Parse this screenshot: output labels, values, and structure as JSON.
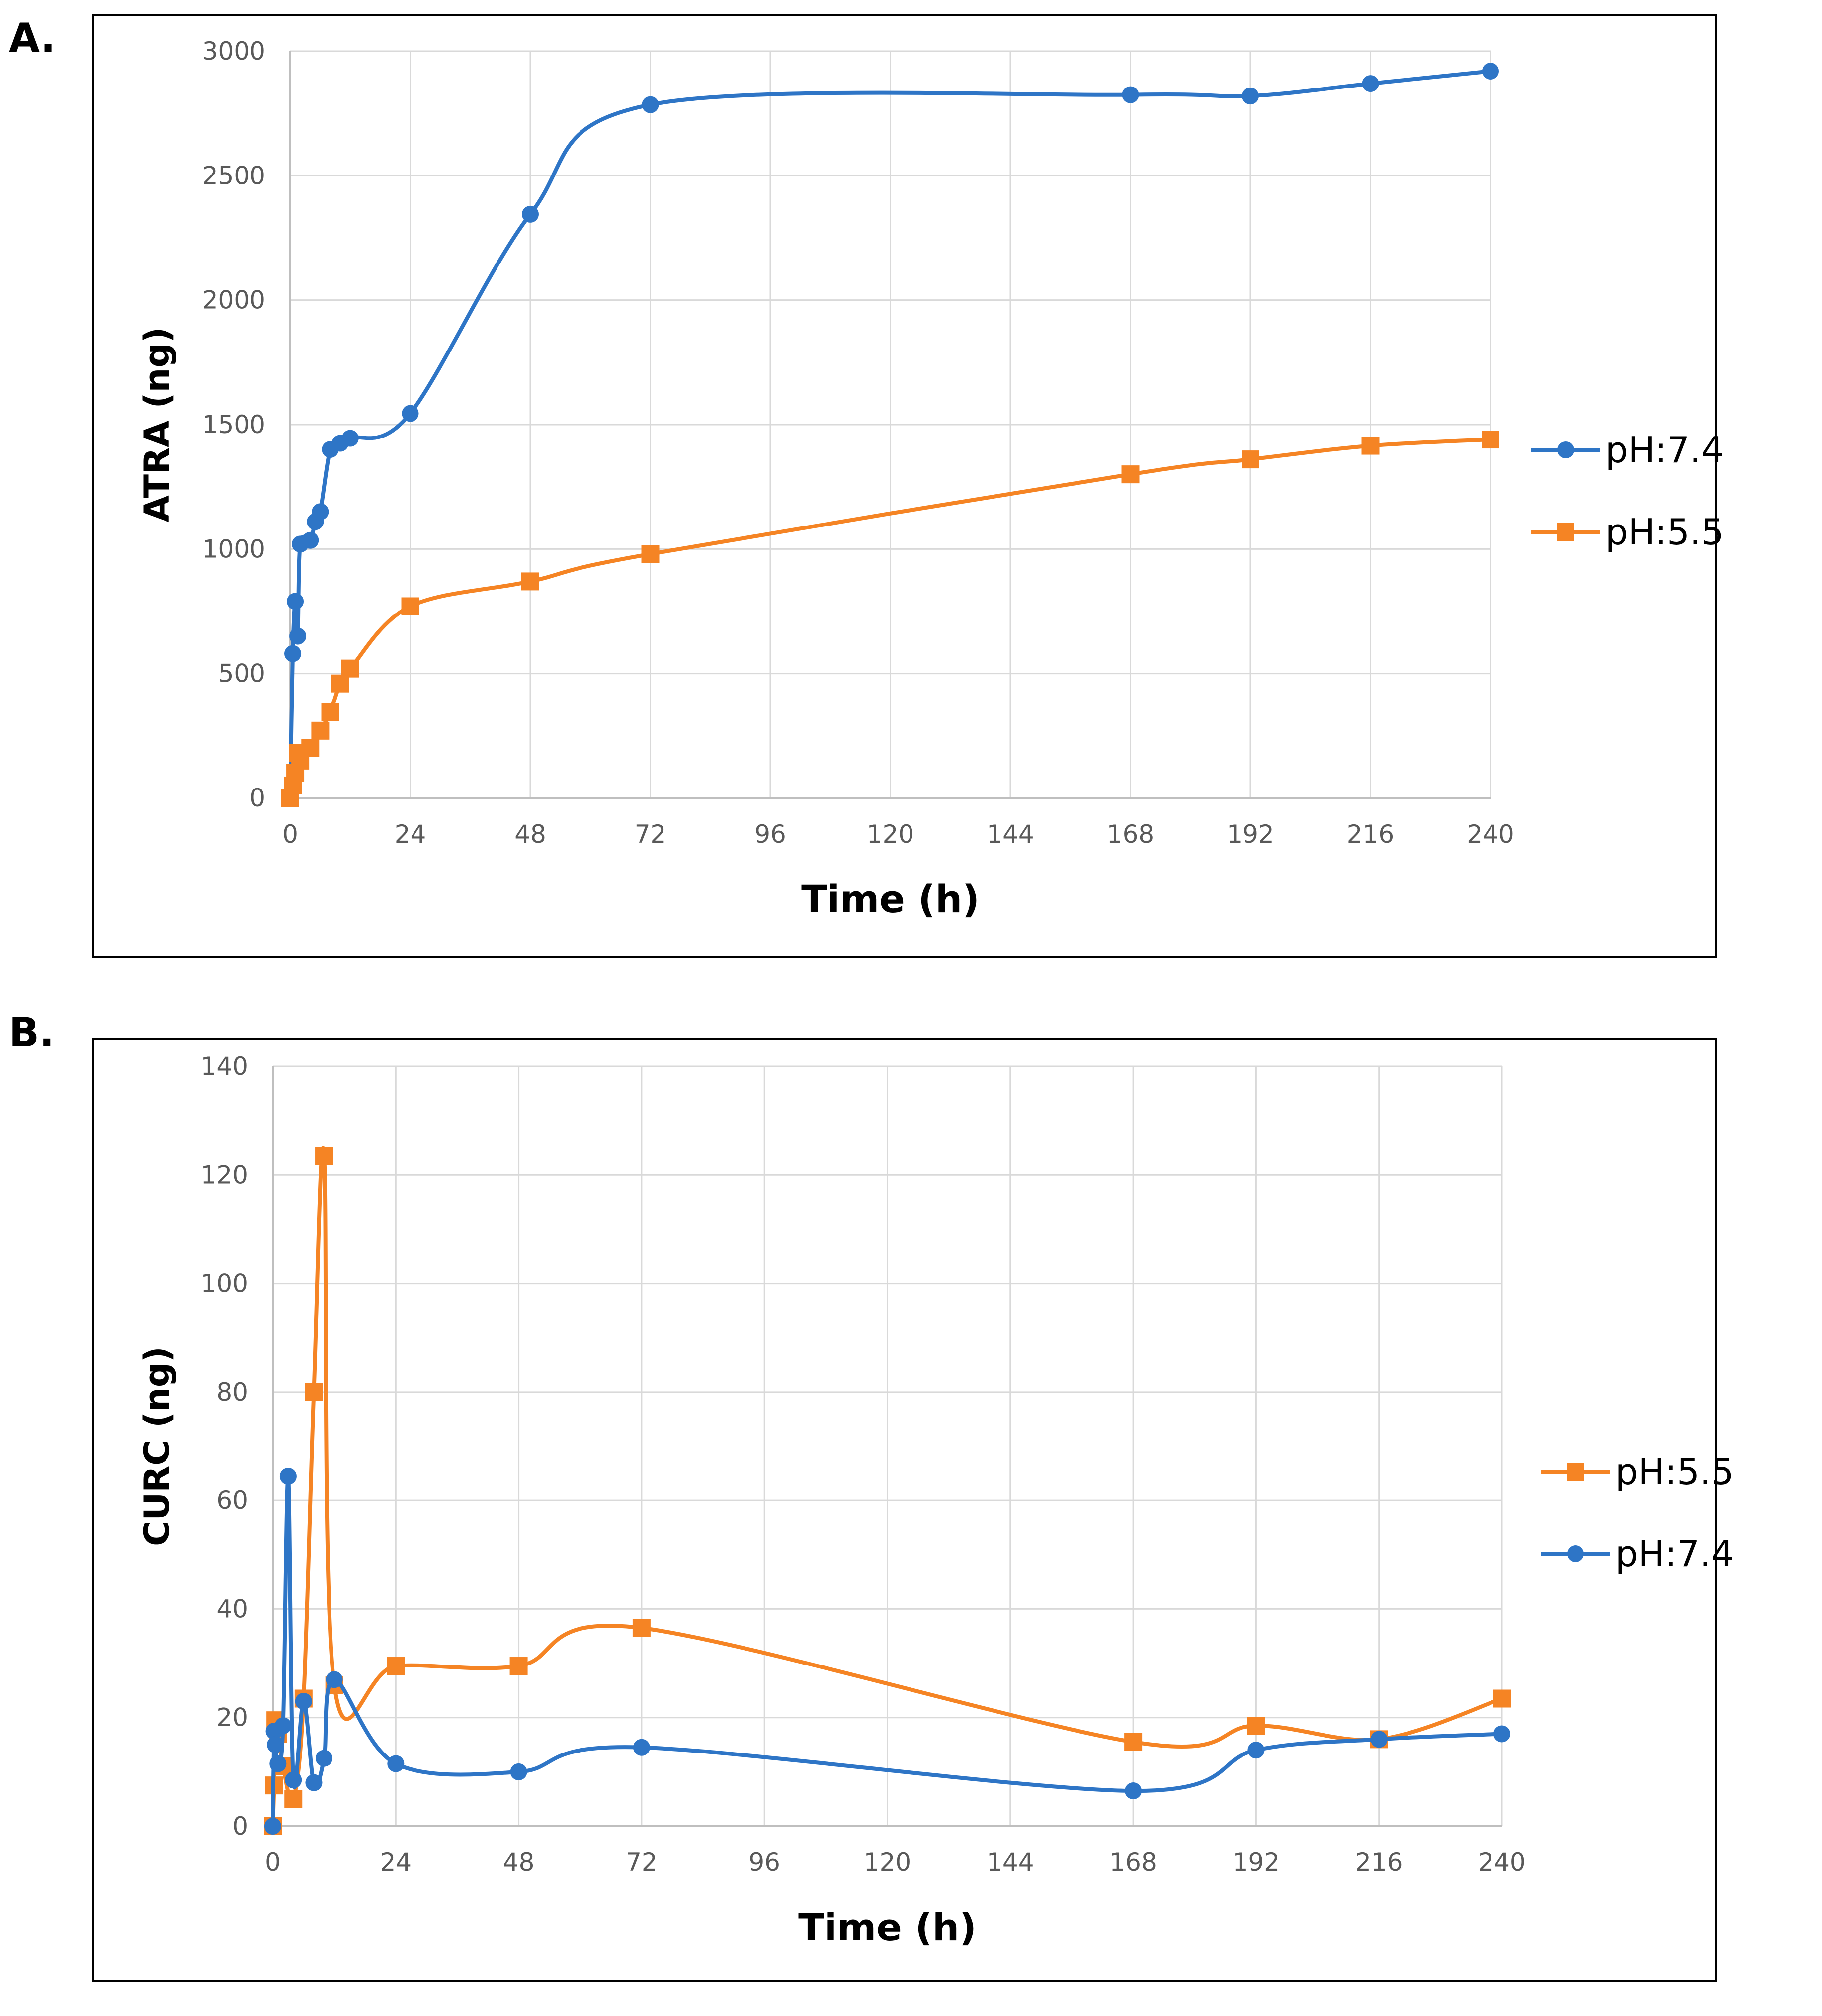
{
  "figure": {
    "panels": [
      {
        "letter": "A.",
        "xlabel": "Time (h)",
        "ylabel": "ATRA (ng)",
        "xticks": [
          0,
          24,
          48,
          72,
          96,
          120,
          144,
          168,
          192,
          216,
          240
        ],
        "yticks": [
          0,
          500,
          1000,
          1500,
          2000,
          2500,
          3000
        ],
        "legend": [
          "pH:7.4",
          "pH:5.5"
        ]
      },
      {
        "letter": "B.",
        "xlabel": "Time (h)",
        "ylabel": "CURC (ng)",
        "xticks": [
          0,
          24,
          48,
          72,
          96,
          120,
          144,
          168,
          192,
          216,
          240
        ],
        "yticks": [
          0,
          20,
          40,
          60,
          80,
          100,
          120,
          140
        ],
        "legend": [
          "pH:5.5",
          "pH:7.4"
        ]
      }
    ]
  },
  "colors": {
    "blue": "#2e75c6",
    "orange": "#f58424",
    "grid": "#d9d9d9",
    "axis": "#bfbfbf",
    "frame": "#000000"
  },
  "chart_data": [
    {
      "type": "line",
      "xlabel": "Time (h)",
      "ylabel": "ATRA (ng)",
      "xlim": [
        0,
        240
      ],
      "ylim": [
        0,
        3000
      ],
      "grid": true,
      "legend_position": "right",
      "series": [
        {
          "name": "pH:7.4",
          "color": "#2e75c6",
          "marker": "circle",
          "x": [
            0,
            0.5,
            1,
            1.5,
            2,
            4,
            5,
            6,
            8,
            10,
            12,
            24,
            48,
            72,
            168,
            192,
            216,
            240
          ],
          "y": [
            0,
            580,
            790,
            650,
            1020,
            1035,
            1110,
            1150,
            1400,
            1425,
            1445,
            1545,
            2345,
            2785,
            2825,
            2820,
            2870,
            2920
          ]
        },
        {
          "name": "pH:5.5",
          "color": "#f58424",
          "marker": "square",
          "x": [
            0,
            0.5,
            1,
            1.5,
            2,
            4,
            6,
            8,
            10,
            12,
            24,
            48,
            72,
            168,
            192,
            216,
            240
          ],
          "y": [
            0,
            50,
            100,
            180,
            150,
            200,
            270,
            345,
            460,
            520,
            770,
            870,
            980,
            1300,
            1360,
            1415,
            1440
          ]
        }
      ]
    },
    {
      "type": "line",
      "xlabel": "Time (h)",
      "ylabel": "CURC (ng)",
      "xlim": [
        0,
        240
      ],
      "ylim": [
        0,
        140
      ],
      "grid": true,
      "legend_position": "right",
      "series": [
        {
          "name": "pH:5.5",
          "color": "#f58424",
          "marker": "square",
          "x": [
            0,
            0.25,
            0.5,
            1,
            2,
            4,
            6,
            8,
            10,
            12,
            24,
            48,
            72,
            168,
            192,
            216,
            240
          ],
          "y": [
            0,
            7.5,
            19.5,
            17,
            11,
            5,
            23.5,
            80,
            123.5,
            26,
            29.5,
            29.5,
            36.5,
            15.5,
            18.5,
            16,
            23.5
          ]
        },
        {
          "name": "pH:7.4",
          "color": "#2e75c6",
          "marker": "circle",
          "x": [
            0,
            0.25,
            0.5,
            1,
            2,
            3,
            4,
            6,
            8,
            10,
            12,
            24,
            48,
            72,
            168,
            192,
            216,
            240
          ],
          "y": [
            0,
            17.5,
            15,
            11.5,
            18.5,
            64.5,
            8.5,
            23,
            8,
            12.5,
            27,
            11.5,
            10,
            14.5,
            6.5,
            14,
            16,
            17
          ]
        }
      ]
    }
  ]
}
